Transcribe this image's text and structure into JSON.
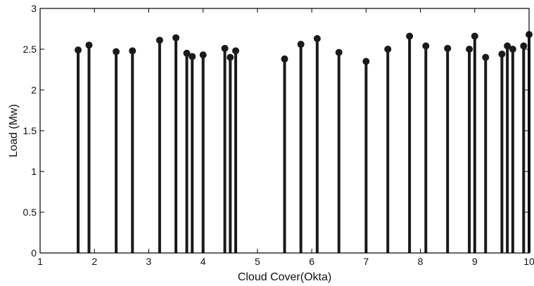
{
  "chart_data": {
    "type": "stem",
    "title": "",
    "xlabel": "Cloud Cover(Okta)",
    "ylabel": "Load (Mw)",
    "xlim": [
      1,
      10
    ],
    "ylim": [
      0,
      3
    ],
    "x_ticks": [
      1,
      2,
      3,
      4,
      5,
      6,
      7,
      8,
      9,
      10
    ],
    "y_ticks": [
      0,
      0.5,
      1,
      1.5,
      2,
      2.5,
      3
    ],
    "x_tick_labels": [
      "1",
      "2",
      "3",
      "4",
      "5",
      "6",
      "7",
      "8",
      "9",
      "10"
    ],
    "y_tick_labels": [
      "0",
      "0.5",
      "1",
      "1.5",
      "2",
      "2.5",
      "3"
    ],
    "grid": false,
    "legend": "none",
    "colors": {
      "stem": "#1a1a1a",
      "marker": "#1a1a1a",
      "axis": "#000000"
    },
    "points": [
      {
        "x": 1.7,
        "y": 2.49
      },
      {
        "x": 1.9,
        "y": 2.55
      },
      {
        "x": 2.4,
        "y": 2.47
      },
      {
        "x": 2.7,
        "y": 2.48
      },
      {
        "x": 3.2,
        "y": 2.61
      },
      {
        "x": 3.5,
        "y": 2.64
      },
      {
        "x": 3.7,
        "y": 2.45
      },
      {
        "x": 3.8,
        "y": 2.41
      },
      {
        "x": 4.0,
        "y": 2.43
      },
      {
        "x": 4.4,
        "y": 2.51
      },
      {
        "x": 4.5,
        "y": 2.4
      },
      {
        "x": 4.6,
        "y": 2.48
      },
      {
        "x": 5.5,
        "y": 2.38
      },
      {
        "x": 5.8,
        "y": 2.56
      },
      {
        "x": 6.1,
        "y": 2.63
      },
      {
        "x": 6.5,
        "y": 2.46
      },
      {
        "x": 7.0,
        "y": 2.35
      },
      {
        "x": 7.4,
        "y": 2.5
      },
      {
        "x": 7.8,
        "y": 2.66
      },
      {
        "x": 8.1,
        "y": 2.54
      },
      {
        "x": 8.5,
        "y": 2.51
      },
      {
        "x": 8.9,
        "y": 2.5
      },
      {
        "x": 9.0,
        "y": 2.66
      },
      {
        "x": 9.2,
        "y": 2.4
      },
      {
        "x": 9.5,
        "y": 2.44
      },
      {
        "x": 9.6,
        "y": 2.54
      },
      {
        "x": 9.7,
        "y": 2.5
      },
      {
        "x": 9.9,
        "y": 2.54
      },
      {
        "x": 10.0,
        "y": 2.68
      }
    ]
  }
}
